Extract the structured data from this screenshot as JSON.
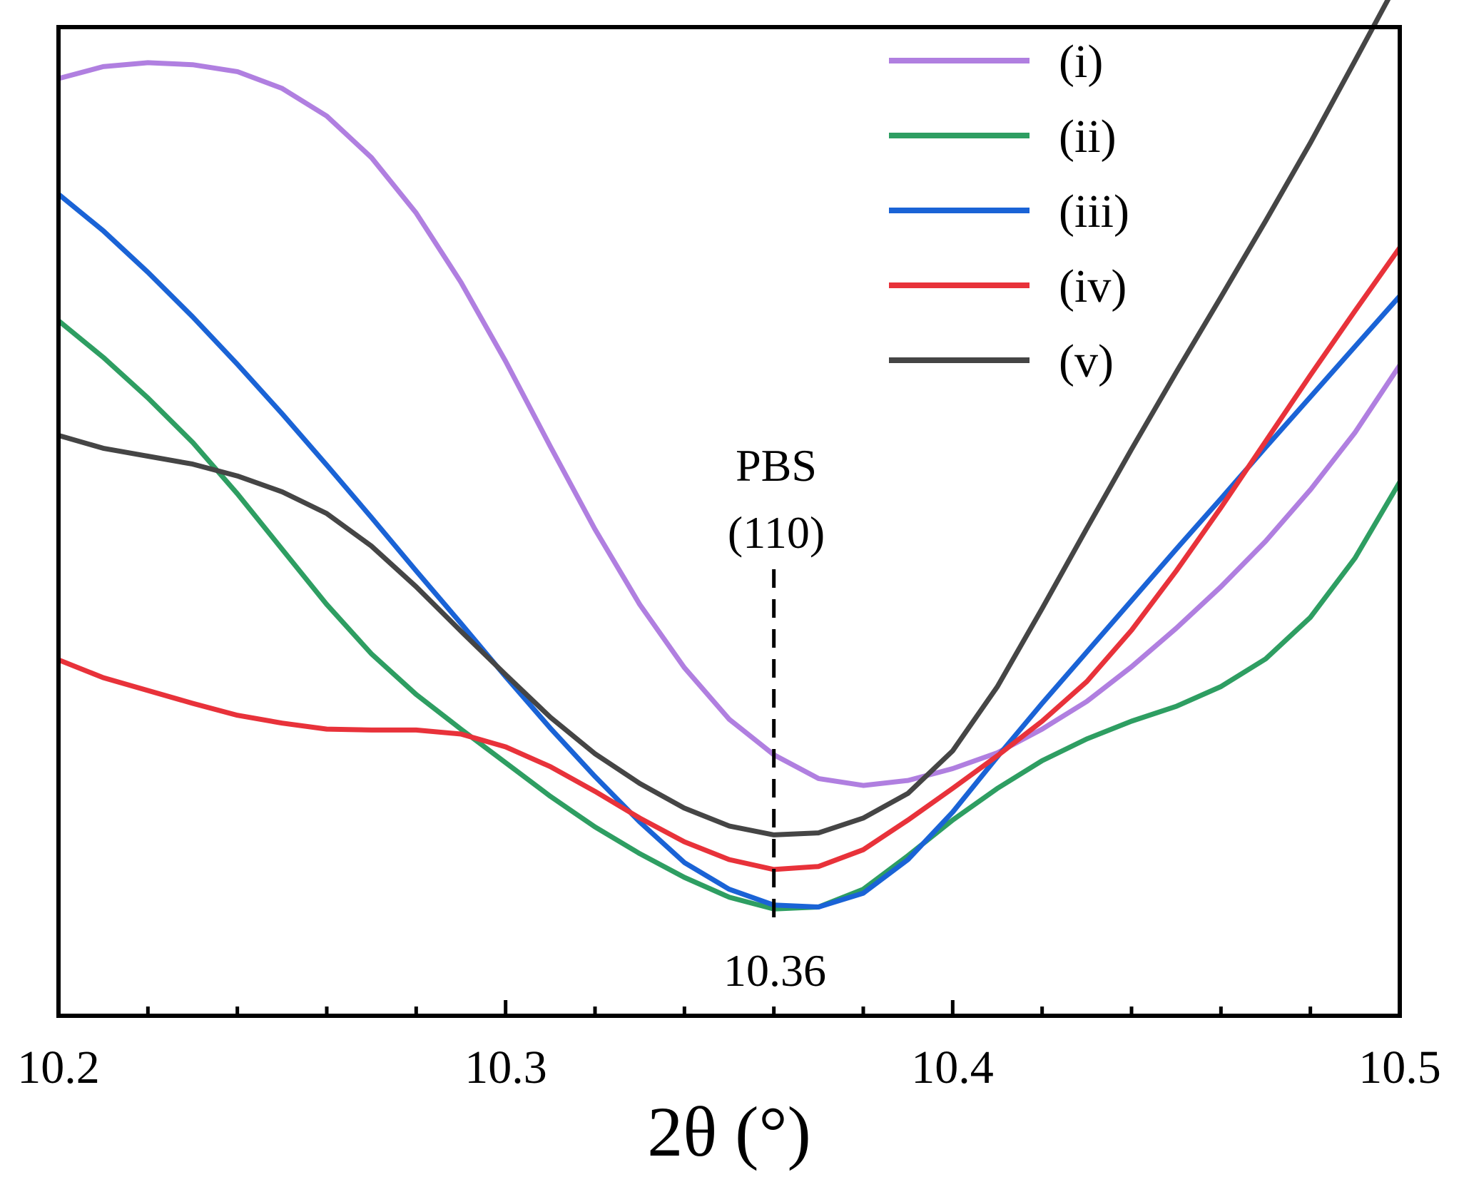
{
  "chart_data": {
    "type": "line",
    "title": "",
    "xlabel": "2θ (°)",
    "ylabel": "",
    "xlim": [
      10.2,
      10.5
    ],
    "ylim": [
      0,
      1000
    ],
    "grid": false,
    "legend_position": "top-right",
    "x_tick_labels": [
      "10.2",
      "10.3",
      "10.4",
      "10.5"
    ],
    "x": [
      10.2,
      10.21,
      10.22,
      10.23,
      10.24,
      10.25,
      10.26,
      10.27,
      10.28,
      10.29,
      10.3,
      10.31,
      10.32,
      10.33,
      10.34,
      10.35,
      10.36,
      10.37,
      10.38,
      10.39,
      10.4,
      10.41,
      10.42,
      10.43,
      10.44,
      10.45,
      10.46,
      10.47,
      10.48,
      10.49,
      10.5
    ],
    "series": [
      {
        "name": "(i)",
        "color": "#b07fe0",
        "values": [
          948,
          960,
          964,
          962,
          955,
          938,
          910,
          868,
          812,
          742,
          662,
          576,
          492,
          416,
          352,
          300,
          264,
          240,
          233,
          238,
          250,
          266,
          290,
          318,
          353,
          392,
          434,
          480,
          532,
          590,
          658
        ]
      },
      {
        "name": "(ii)",
        "color": "#2e9e62",
        "values": [
          703,
          666,
          625,
          580,
          528,
          472,
          416,
          366,
          325,
          290,
          256,
          222,
          191,
          164,
          140,
          120,
          108,
          110,
          128,
          162,
          198,
          230,
          258,
          280,
          298,
          313,
          333,
          361,
          403,
          463,
          540
        ]
      },
      {
        "name": "(iii)",
        "color": "#1a63d6",
        "values": [
          831,
          794,
          752,
          707,
          659,
          609,
          557,
          504,
          450,
          397,
          343,
          291,
          242,
          196,
          155,
          128,
          112,
          110,
          124,
          158,
          206,
          262,
          316,
          368,
          420,
          472,
          523,
          575,
          626,
          677,
          728
        ]
      },
      {
        "name": "(iv)",
        "color": "#e8323a",
        "values": [
          360,
          342,
          329,
          316,
          304,
          296,
          290,
          289,
          289,
          285,
          272,
          252,
          227,
          200,
          176,
          158,
          148,
          151,
          168,
          198,
          230,
          263,
          298,
          338,
          390,
          450,
          514,
          581,
          648,
          713,
          777
        ]
      },
      {
        "name": "(v)",
        "color": "#454545",
        "values": [
          587,
          574,
          566,
          558,
          546,
          530,
          508,
          475,
          434,
          389,
          345,
          302,
          265,
          235,
          210,
          192,
          183,
          185,
          200,
          225,
          268,
          333,
          412,
          493,
          573,
          651,
          727,
          804,
          883,
          966,
          1050
        ]
      }
    ],
    "annotations": {
      "reference_x": 10.36,
      "peak_label_line1": "PBS",
      "peak_label_line2": "(110)",
      "peak_value_label": "10.36"
    }
  }
}
